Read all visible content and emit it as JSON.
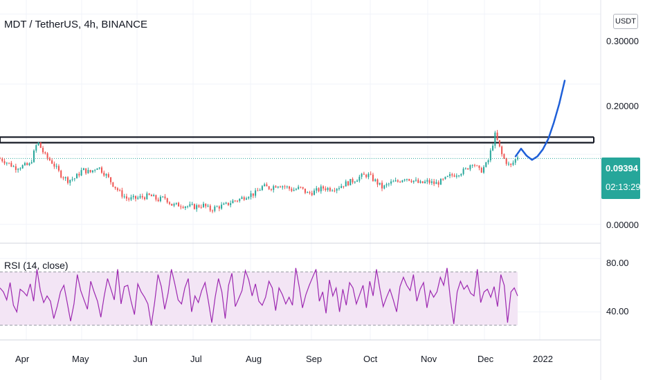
{
  "header": {
    "symbol_title": "MDT / TetherUS, 4h, BINANCE",
    "currency_button": "USDT"
  },
  "price_tag": {
    "last_price": "0.09394",
    "countdown": "02:13:29",
    "color": "#26a69a"
  },
  "rsi_panel": {
    "label": "RSI (14, close)",
    "color": "#9c27b0",
    "band_fill": "#f3e5f5"
  },
  "colors": {
    "up": "#26a69a",
    "down": "#ef5350",
    "projection": "#1e5fd8",
    "grid": "#f0f3fa",
    "text": "#131722"
  },
  "chart_data": [
    {
      "type": "line",
      "title": "MDT / TetherUS, 4h, BINANCE",
      "xlabel": "",
      "ylabel": "",
      "x_ticks": [
        "Apr",
        "May",
        "Jun",
        "Jul",
        "Aug",
        "Sep",
        "Oct",
        "Nov",
        "Dec",
        "2022"
      ],
      "y_ticks": [
        "0.30000",
        "0.20000",
        "0.00000"
      ],
      "ylim": [
        -0.015,
        0.32
      ],
      "grid": true,
      "series": [
        {
          "values": [
            0.094,
            0.088,
            0.081,
            0.083,
            0.085,
            0.118,
            0.098,
            0.088,
            0.072,
            0.063,
            0.066,
            0.078,
            0.074,
            0.083,
            0.072,
            0.058,
            0.045,
            0.036,
            0.037,
            0.039,
            0.041,
            0.035,
            0.038,
            0.027,
            0.028,
            0.026,
            0.025,
            0.028,
            0.021,
            0.025,
            0.027,
            0.033,
            0.036,
            0.042,
            0.044,
            0.054,
            0.052,
            0.057,
            0.054,
            0.049,
            0.052,
            0.044,
            0.047,
            0.052,
            0.051,
            0.053,
            0.058,
            0.062,
            0.068,
            0.071,
            0.062,
            0.052,
            0.059,
            0.061,
            0.067,
            0.063,
            0.058,
            0.061,
            0.058,
            0.062,
            0.069,
            0.073,
            0.077,
            0.089,
            0.075,
            0.088,
            0.128,
            0.096,
            0.082,
            0.097
          ]
        },
        {
          "values": [
            0.097,
            0.108,
            0.098,
            0.092,
            0.097,
            0.107,
            0.122,
            0.145,
            0.172,
            0.205
          ]
        }
      ],
      "horizontal_levels": [
        0.1245,
        0.1165,
        0.094
      ]
    },
    {
      "type": "line",
      "title": "RSI (14, close)",
      "y_ticks": [
        "80.00",
        "40.00"
      ],
      "ylim": [
        20,
        90
      ],
      "bands": [
        30,
        70
      ],
      "series": [
        {
          "values": [
            58,
            55,
            49,
            62,
            45,
            40,
            57,
            55,
            52,
            61,
            48,
            72,
            56,
            47,
            52,
            48,
            35,
            44,
            55,
            60,
            47,
            33,
            46,
            68,
            56,
            49,
            42,
            63,
            55,
            48,
            36,
            52,
            65,
            57,
            49,
            72,
            46,
            59,
            60,
            48,
            38,
            61,
            55,
            51,
            46,
            30,
            47,
            68,
            59,
            42,
            54,
            72,
            61,
            49,
            46,
            58,
            65,
            40,
            52,
            47,
            56,
            62,
            48,
            32,
            51,
            65,
            55,
            35,
            60,
            69,
            44,
            50,
            56,
            71,
            64,
            52,
            61,
            48,
            45,
            51,
            63,
            58,
            41,
            58,
            53,
            46,
            51,
            45,
            73,
            59,
            43,
            53,
            60,
            66,
            72,
            48,
            55,
            39,
            64,
            52,
            58,
            40,
            57,
            45,
            62,
            58,
            46,
            53,
            60,
            43,
            63,
            52,
            72,
            57,
            44,
            51,
            57,
            49,
            40,
            59,
            66,
            60,
            56,
            68,
            48,
            57,
            62,
            43,
            56,
            51,
            55,
            66,
            60,
            73,
            49,
            31,
            55,
            63,
            57,
            60,
            54,
            52,
            72,
            47,
            55,
            57,
            51,
            59,
            44,
            68,
            60,
            32,
            55,
            58,
            52
          ]
        }
      ]
    }
  ]
}
